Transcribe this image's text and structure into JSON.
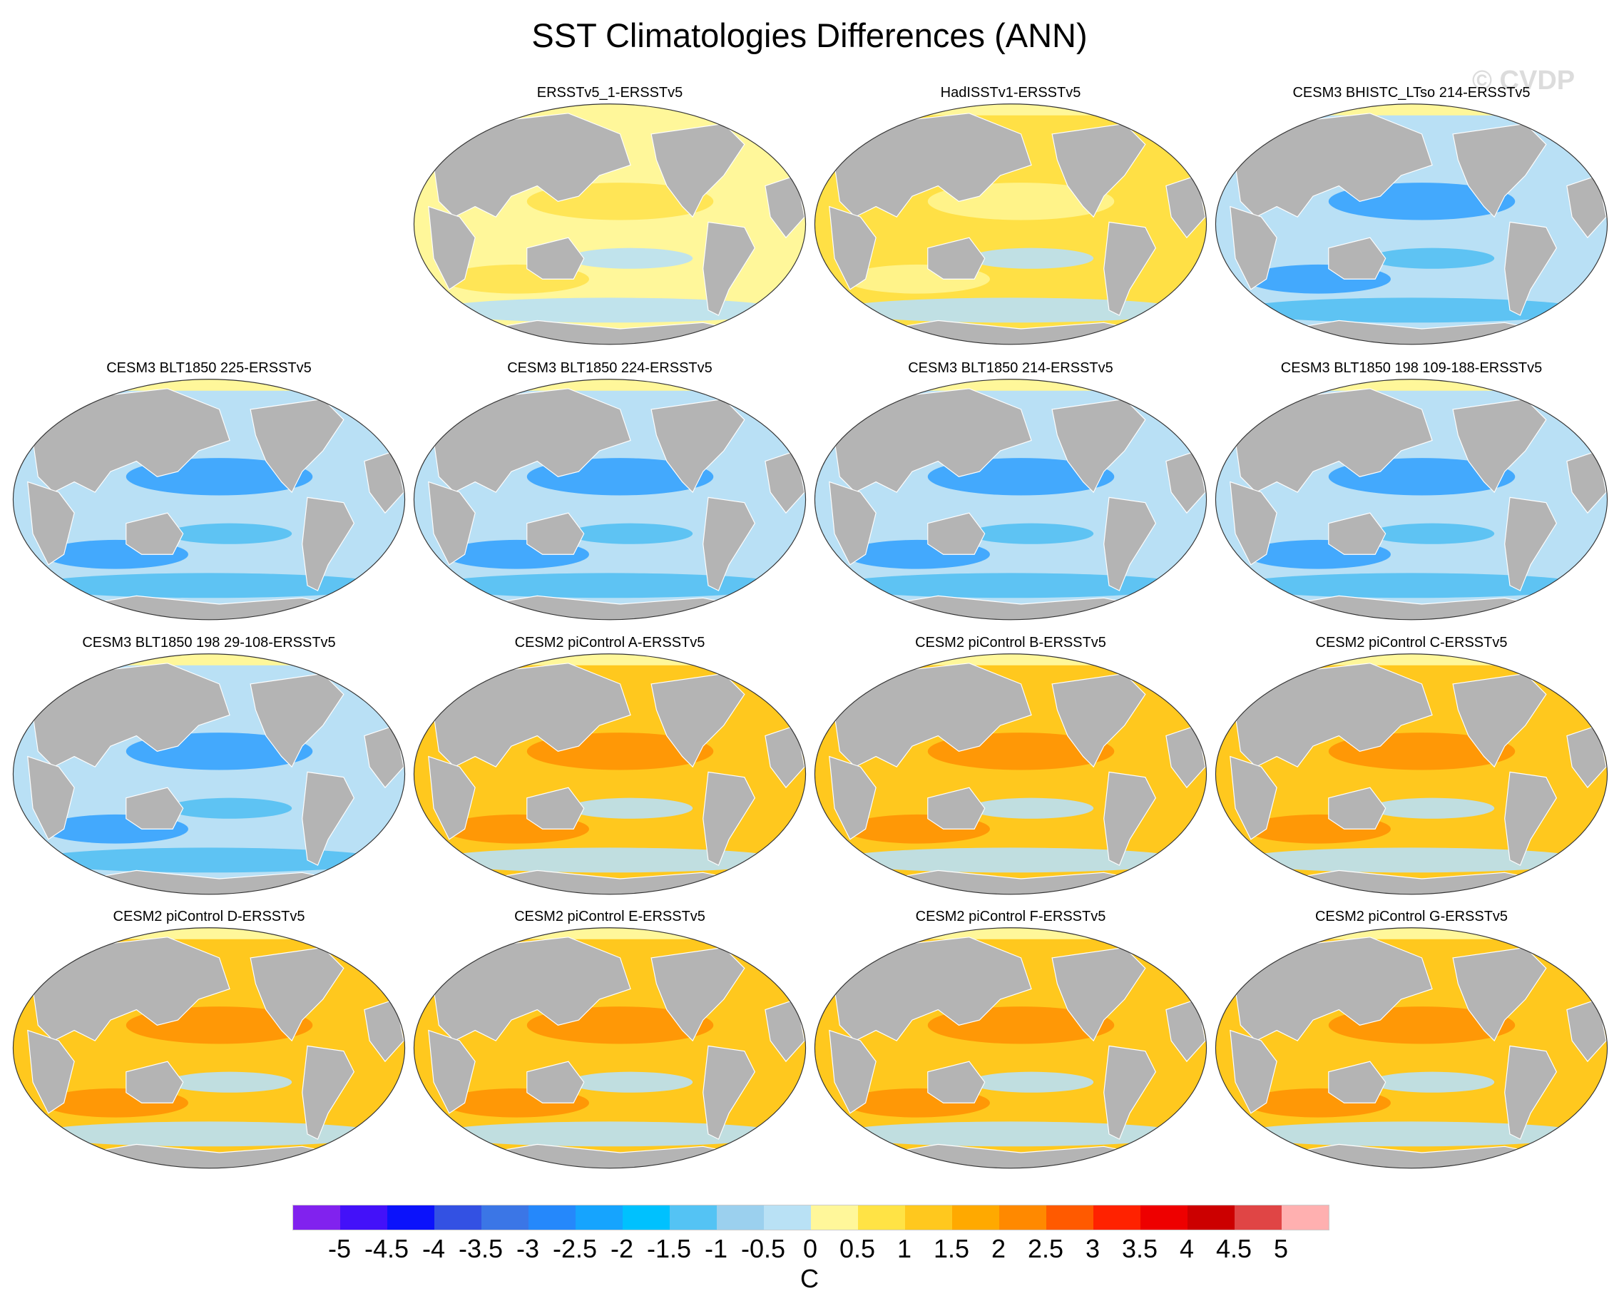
{
  "title": "SST Climatologies Differences (ANN)",
  "watermark": "© CVDP",
  "panels": [
    {
      "title": "ERSSTv5_1-ERSSTv5",
      "base": "#fff79a",
      "accent": "#ffe045",
      "cool": "#b9e0f5"
    },
    {
      "title": "HadISSTv1-ERSSTv5",
      "base": "#ffe045",
      "accent": "#fff79a",
      "cool": "#b9e0f5"
    },
    {
      "title": "CESM3 BHISTC_LTso 214-ERSSTv5",
      "base": "#b9e0f5",
      "accent": "#259bff",
      "cool": "#54c0f3"
    },
    {
      "title": "CESM3 BLT1850 225-ERSSTv5",
      "base": "#b9e0f5",
      "accent": "#259bff",
      "cool": "#54c0f3"
    },
    {
      "title": "CESM3 BLT1850 224-ERSSTv5",
      "base": "#b9e0f5",
      "accent": "#259bff",
      "cool": "#54c0f3"
    },
    {
      "title": "CESM3 BLT1850 214-ERSSTv5",
      "base": "#b9e0f5",
      "accent": "#259bff",
      "cool": "#54c0f3"
    },
    {
      "title": "CESM3 BLT1850 198 109-188-ERSSTv5",
      "base": "#b9e0f5",
      "accent": "#259bff",
      "cool": "#54c0f3"
    },
    {
      "title": "CESM3 BLT1850 198 29-108-ERSSTv5",
      "base": "#b9e0f5",
      "accent": "#259bff",
      "cool": "#54c0f3"
    },
    {
      "title": "CESM2 piControl A-ERSSTv5",
      "base": "#ffc81e",
      "accent": "#ff8c00",
      "cool": "#b9e0f5"
    },
    {
      "title": "CESM2 piControl B-ERSSTv5",
      "base": "#ffc81e",
      "accent": "#ff8c00",
      "cool": "#b9e0f5"
    },
    {
      "title": "CESM2 piControl C-ERSSTv5",
      "base": "#ffc81e",
      "accent": "#ff8c00",
      "cool": "#b9e0f5"
    },
    {
      "title": "CESM2 piControl D-ERSSTv5",
      "base": "#ffc81e",
      "accent": "#ff8c00",
      "cool": "#b9e0f5"
    },
    {
      "title": "CESM2 piControl E-ERSSTv5",
      "base": "#ffc81e",
      "accent": "#ff8c00",
      "cool": "#b9e0f5"
    },
    {
      "title": "CESM2 piControl F-ERSSTv5",
      "base": "#ffc81e",
      "accent": "#ff8c00",
      "cool": "#b9e0f5"
    },
    {
      "title": "CESM2 piControl G-ERSSTv5",
      "base": "#ffc81e",
      "accent": "#ff8c00",
      "cool": "#b9e0f5"
    }
  ],
  "colorbar": {
    "unit": "C",
    "labels": [
      "-5",
      "-4.5",
      "-4",
      "-3.5",
      "-3",
      "-2.5",
      "-2",
      "-1.5",
      "-1",
      "-0.5",
      "0",
      "0.5",
      "1",
      "1.5",
      "2",
      "2.5",
      "3",
      "3.5",
      "4",
      "4.5",
      "5"
    ],
    "colors": [
      "#8122ee",
      "#4311f9",
      "#0b12fb",
      "#3351e3",
      "#3b76e6",
      "#2588fb",
      "#16a4fe",
      "#00c1fe",
      "#54c3f4",
      "#9bd0ee",
      "#b9e1f5",
      "#fff79a",
      "#ffe345",
      "#ffc81e",
      "#ffa900",
      "#ff8900",
      "#ff5a00",
      "#ff2200",
      "#ee0000",
      "#cc0000",
      "#e04545",
      "#ffb0b0"
    ]
  }
}
